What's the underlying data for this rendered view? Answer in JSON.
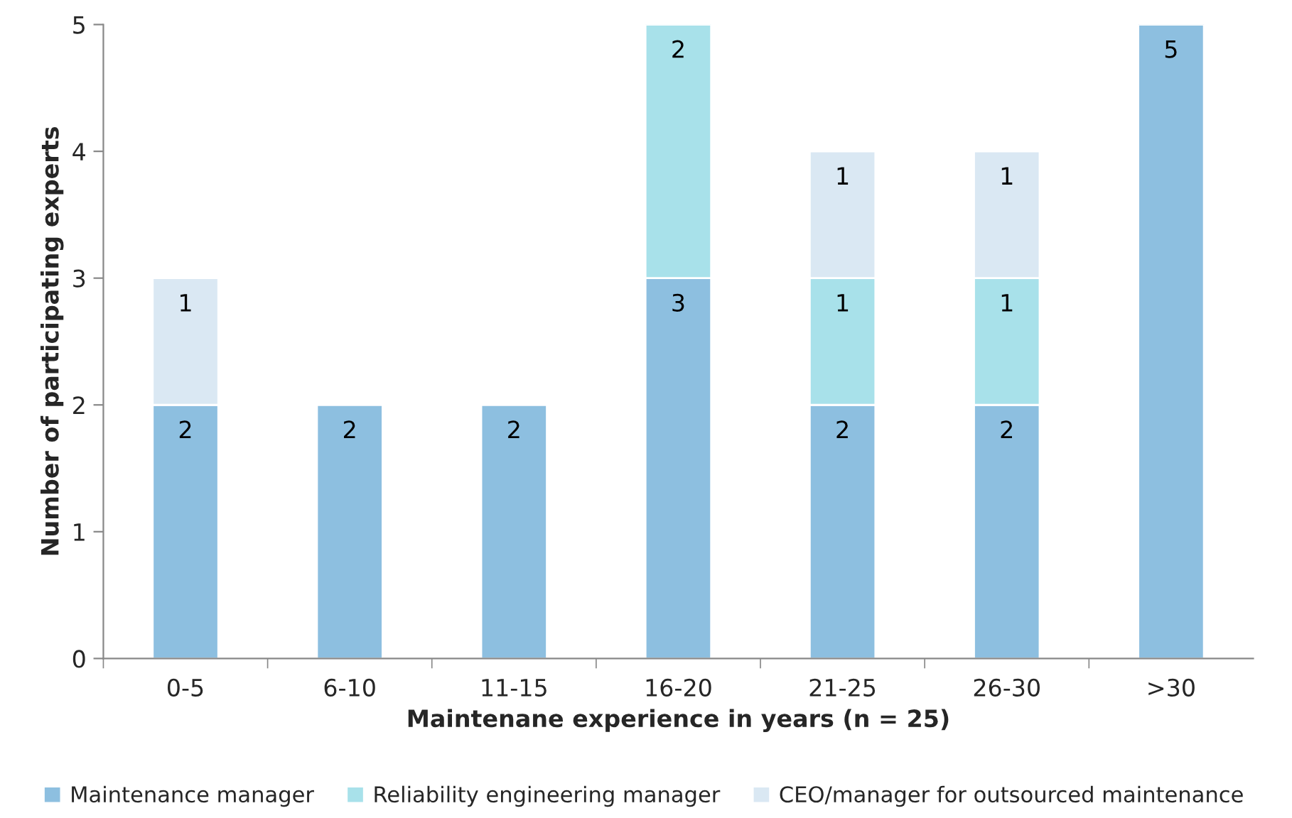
{
  "chart_data": {
    "type": "bar",
    "stacked": true,
    "xlabel": "Maintenane experience in years (n = 25)",
    "ylabel": "Number of participating experts",
    "categories": [
      "0-5",
      "6-10",
      "11-15",
      "16-20",
      "21-25",
      "26-30",
      ">30"
    ],
    "series": [
      {
        "name": "Maintenance manager",
        "color": "#8dbfe0",
        "values": [
          2,
          2,
          2,
          3,
          2,
          2,
          5
        ]
      },
      {
        "name": "Reliability engineering manager",
        "color": "#a8e1ea",
        "values": [
          null,
          null,
          null,
          2,
          1,
          1,
          null
        ]
      },
      {
        "name": "CEO/manager for outsourced maintenance",
        "color": "#dae8f3",
        "values": [
          1,
          null,
          null,
          null,
          1,
          1,
          null
        ]
      }
    ],
    "ylim": [
      0,
      5
    ],
    "yticks": [
      0,
      1,
      2,
      3,
      4,
      5
    ],
    "grid": false,
    "legend": "bottom",
    "data_labels": true
  }
}
